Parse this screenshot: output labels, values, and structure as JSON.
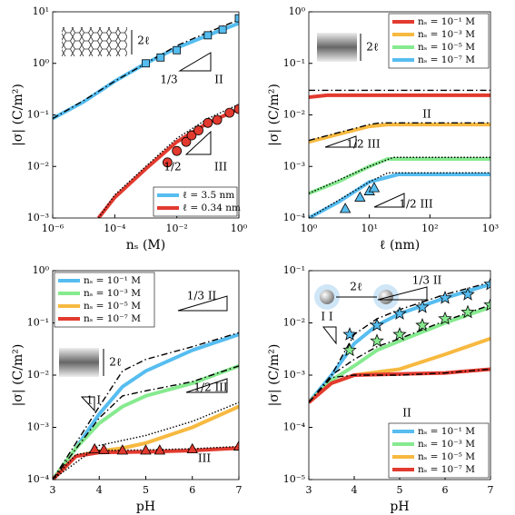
{
  "chart_data": [
    {
      "type": "line",
      "xlabel": "nₛ (M)",
      "ylabel": "|σ| (C/m²)",
      "xscale": "log",
      "yscale": "log",
      "xlim": [
        1e-06,
        1
      ],
      "ylim": [
        0.001,
        10
      ],
      "xticks": [
        {
          "value": 1e-06,
          "label": "10⁻⁶"
        },
        {
          "value": 0.0001,
          "label": "10⁻⁴"
        },
        {
          "value": 0.01,
          "label": "10⁻²"
        },
        {
          "value": 1,
          "label": "10⁰"
        }
      ],
      "yticks": [
        {
          "value": 0.001,
          "label": "10⁻³"
        },
        {
          "value": 0.01,
          "label": "10⁻²"
        },
        {
          "value": 0.1,
          "label": "10⁻¹"
        },
        {
          "value": 1,
          "label": "10⁰"
        },
        {
          "value": 10,
          "label": "10¹"
        }
      ],
      "legend": "lower right",
      "annotations": [
        "2ℓ",
        "1/3",
        "II",
        "1/2",
        "III"
      ],
      "series": [
        {
          "name": "ℓ = 3.5 nm",
          "color": "#56bdf0",
          "style": "solid",
          "x": [
            1e-06,
            1e-05,
            0.0001,
            0.001,
            0.01,
            0.1,
            1
          ],
          "values": [
            0.085,
            0.18,
            0.45,
            1.0,
            2.0,
            3.5,
            6
          ]
        },
        {
          "name": "ℓ = 0.34 nm",
          "color": "#e23a2f",
          "style": "solid",
          "x": [
            3e-05,
            0.0001,
            0.001,
            0.01,
            0.1,
            1
          ],
          "values": [
            0.001,
            0.0025,
            0.009,
            0.03,
            0.07,
            0.13
          ]
        },
        {
          "color": "#000000",
          "style": "dashdot",
          "x": [
            1e-06,
            1e-05,
            0.0001,
            0.001,
            0.01,
            0.1,
            1
          ],
          "values": [
            0.085,
            0.19,
            0.45,
            1.0,
            2.2,
            4.0,
            7
          ]
        },
        {
          "color": "#000000",
          "style": "dotted",
          "x": [
            3e-05,
            0.0001,
            0.001,
            0.01,
            0.1,
            1
          ],
          "values": [
            0.001,
            0.0028,
            0.01,
            0.035,
            0.085,
            0.16
          ]
        },
        {
          "color": "#56bdf0",
          "marker": "square",
          "x": [
            0.001,
            0.003,
            0.01,
            0.1,
            0.3,
            1
          ],
          "values": [
            1.0,
            1.3,
            1.8,
            3.5,
            4.5,
            7.5
          ]
        },
        {
          "color": "#e23a2f",
          "marker": "circle",
          "x": [
            0.005,
            0.01,
            0.02,
            0.03,
            0.05,
            0.1,
            0.2,
            0.5,
            1
          ],
          "values": [
            0.012,
            0.02,
            0.03,
            0.04,
            0.05,
            0.07,
            0.08,
            0.11,
            0.13
          ]
        }
      ]
    },
    {
      "type": "line",
      "xlabel": "ℓ (nm)",
      "ylabel": "|σ| (C/m²)",
      "xscale": "log",
      "yscale": "log",
      "xlim": [
        1,
        1000
      ],
      "ylim": [
        0.0001,
        1
      ],
      "xticks": [
        {
          "value": 1,
          "label": "10⁰"
        },
        {
          "value": 10,
          "label": "10¹"
        },
        {
          "value": 100,
          "label": "10²"
        },
        {
          "value": 1000,
          "label": "10³"
        }
      ],
      "yticks": [
        {
          "value": 0.0001,
          "label": "10⁻⁴"
        },
        {
          "value": 0.001,
          "label": "10⁻³"
        },
        {
          "value": 0.01,
          "label": "10⁻²"
        },
        {
          "value": 0.1,
          "label": "10⁻¹"
        },
        {
          "value": 1,
          "label": "10⁰"
        }
      ],
      "legend": "upper right",
      "annotations": [
        "2ℓ",
        "II",
        "1/2 III",
        "1/2 III"
      ],
      "series": [
        {
          "name": "nₛ = 10⁻¹ M",
          "color": "#e23a2f",
          "style": "solid",
          "x": [
            1,
            2,
            10,
            100,
            1000
          ],
          "values": [
            0.022,
            0.024,
            0.024,
            0.024,
            0.024
          ]
        },
        {
          "name": "nₛ = 10⁻³ M",
          "color": "#f7b940",
          "style": "solid",
          "x": [
            1,
            3,
            10,
            20,
            100,
            1000
          ],
          "values": [
            0.003,
            0.0042,
            0.006,
            0.0065,
            0.0065,
            0.0065
          ]
        },
        {
          "name": "nₛ = 10⁻⁵ M",
          "color": "#86ea8f",
          "style": "solid",
          "x": [
            1,
            3,
            10,
            20,
            100,
            1000
          ],
          "values": [
            0.0003,
            0.0005,
            0.001,
            0.0014,
            0.0014,
            0.0014
          ]
        },
        {
          "name": "nₛ = 10⁻⁷ M",
          "color": "#56bdf0",
          "style": "solid",
          "x": [
            1,
            3,
            10,
            30,
            100,
            1000
          ],
          "values": [
            0.0001,
            0.0002,
            0.0005,
            0.0007,
            0.0007,
            0.0007
          ]
        },
        {
          "color": "#000000",
          "style": "dashdot",
          "x": [
            1,
            2,
            1000
          ],
          "values": [
            0.03,
            0.03,
            0.03
          ]
        },
        {
          "color": "#000000",
          "style": "dashdot",
          "x": [
            1,
            10,
            15,
            1000
          ],
          "values": [
            0.0032,
            0.0065,
            0.007,
            0.007
          ]
        },
        {
          "color": "#000000",
          "style": "dotted",
          "x": [
            1,
            10,
            25,
            1000
          ],
          "values": [
            0.0003,
            0.001,
            0.0015,
            0.0015
          ]
        },
        {
          "color": "#000000",
          "style": "dotted",
          "x": [
            1,
            10,
            20,
            1000
          ],
          "values": [
            0.0001,
            0.0005,
            0.00075,
            0.00075
          ]
        },
        {
          "color": "#56bdf0",
          "marker": "triangle",
          "x": [
            4,
            7,
            10,
            12
          ],
          "values": [
            0.00015,
            0.00025,
            0.00033,
            0.00038
          ]
        }
      ]
    },
    {
      "type": "line",
      "xlabel": "pH",
      "ylabel": "|σ| (C/m²)",
      "xscale": "linear",
      "yscale": "log",
      "xlim": [
        3,
        7
      ],
      "ylim": [
        0.0001,
        1
      ],
      "xticks": [
        3,
        4,
        5,
        6,
        7
      ],
      "yticks": [
        {
          "value": 0.0001,
          "label": "10⁻⁴"
        },
        {
          "value": 0.001,
          "label": "10⁻³"
        },
        {
          "value": 0.01,
          "label": "10⁻²"
        },
        {
          "value": 0.1,
          "label": "10⁻¹"
        },
        {
          "value": 1,
          "label": "10⁰"
        }
      ],
      "legend": "upper left",
      "annotations": [
        "2ℓ",
        "1/3 II",
        "1/2 III",
        "1 I",
        "III"
      ],
      "series": [
        {
          "name": "nₛ = 10⁻¹ M",
          "color": "#56bdf0",
          "style": "solid",
          "x": [
            3,
            3.5,
            4,
            4.5,
            5,
            6,
            7
          ],
          "values": [
            0.0001,
            0.0004,
            0.0018,
            0.006,
            0.012,
            0.03,
            0.06
          ]
        },
        {
          "name": "nₛ = 10⁻³ M",
          "color": "#86ea8f",
          "style": "solid",
          "x": [
            3,
            3.5,
            4,
            4.5,
            5,
            6,
            7
          ],
          "values": [
            0.0001,
            0.0004,
            0.0012,
            0.0025,
            0.004,
            0.007,
            0.015
          ]
        },
        {
          "name": "nₛ = 10⁻⁵ M",
          "color": "#f7b940",
          "style": "solid",
          "x": [
            3,
            3.5,
            4,
            4.5,
            5,
            6,
            7
          ],
          "values": [
            0.0001,
            0.00028,
            0.00035,
            0.0004,
            0.0005,
            0.001,
            0.0025
          ]
        },
        {
          "name": "nₛ = 10⁻⁷ M",
          "color": "#e23a2f",
          "style": "solid",
          "x": [
            3,
            3.5,
            4,
            5,
            6,
            7
          ],
          "values": [
            0.0001,
            0.00028,
            0.00033,
            0.00034,
            0.00036,
            0.0004
          ]
        },
        {
          "color": "#000000",
          "style": "dashdot",
          "x": [
            3,
            4,
            4.5,
            5,
            6,
            7
          ],
          "values": [
            0.0001,
            0.0025,
            0.012,
            0.02,
            0.035,
            0.065
          ]
        },
        {
          "color": "#000000",
          "style": "dashdot",
          "x": [
            3,
            4,
            4.5,
            5,
            6,
            7
          ],
          "values": [
            0.0001,
            0.0015,
            0.004,
            0.005,
            0.0075,
            0.015
          ]
        },
        {
          "color": "#000000",
          "style": "dotted",
          "x": [
            3,
            4,
            5,
            6,
            7
          ],
          "values": [
            0.0001,
            0.00045,
            0.0007,
            0.0013,
            0.003
          ]
        },
        {
          "color": "#000000",
          "style": "dotted",
          "x": [
            3,
            3.5,
            4,
            5,
            6,
            7
          ],
          "values": [
            0.0001,
            0.0003,
            0.00036,
            0.00037,
            0.00039,
            0.00043
          ]
        },
        {
          "color": "#e23a2f",
          "marker": "triangle",
          "x": [
            3.9,
            4.1,
            4.5,
            5,
            5.3,
            6,
            7
          ],
          "values": [
            0.00038,
            0.00037,
            0.00036,
            0.00036,
            0.00036,
            0.00038,
            0.00043
          ]
        }
      ]
    },
    {
      "type": "line",
      "xlabel": "pH",
      "ylabel": "|σ| (C/m²)",
      "xscale": "linear",
      "yscale": "log",
      "xlim": [
        3,
        7
      ],
      "ylim": [
        1e-05,
        0.1
      ],
      "xticks": [
        3,
        4,
        5,
        6,
        7
      ],
      "yticks": [
        {
          "value": 1e-05,
          "label": "10⁻⁵"
        },
        {
          "value": 0.0001,
          "label": "10⁻⁴"
        },
        {
          "value": 0.001,
          "label": "10⁻³"
        },
        {
          "value": 0.01,
          "label": "10⁻²"
        },
        {
          "value": 0.1,
          "label": "10⁻¹"
        }
      ],
      "legend": "lower right",
      "annotations": [
        "2ℓ",
        "1/3 II",
        "I I",
        "II"
      ],
      "series": [
        {
          "name": "nₛ = 10⁻¹ M",
          "color": "#56bdf0",
          "style": "solid",
          "x": [
            3,
            3.5,
            4,
            4.5,
            5,
            6,
            7
          ],
          "values": [
            0.0003,
            0.001,
            0.004,
            0.009,
            0.015,
            0.03,
            0.055
          ]
        },
        {
          "name": "nₛ = 10⁻³ M",
          "color": "#86ea8f",
          "style": "solid",
          "x": [
            3,
            3.5,
            4,
            4.5,
            5,
            6,
            7
          ],
          "values": [
            0.0003,
            0.0008,
            0.0015,
            0.003,
            0.0045,
            0.01,
            0.02
          ]
        },
        {
          "name": "nₛ = 10⁻⁵ M",
          "color": "#f7b940",
          "style": "solid",
          "x": [
            3,
            3.5,
            4,
            5,
            6,
            7
          ],
          "values": [
            0.0003,
            0.0007,
            0.001,
            0.0013,
            0.0025,
            0.005
          ]
        },
        {
          "name": "nₛ = 10⁻⁷ M",
          "color": "#e23a2f",
          "style": "solid",
          "x": [
            3,
            3.5,
            4,
            5,
            6,
            7
          ],
          "values": [
            0.0003,
            0.0007,
            0.001,
            0.00105,
            0.0011,
            0.0013
          ]
        },
        {
          "color": "#000000",
          "style": "dashdot",
          "x": [
            3,
            3.5,
            4,
            4.5,
            5,
            6,
            7
          ],
          "values": [
            0.0003,
            0.001,
            0.006,
            0.012,
            0.018,
            0.035,
            0.06
          ]
        },
        {
          "color": "#000000",
          "style": "dashdot",
          "x": [
            3,
            3.5,
            4,
            4.5,
            5,
            6,
            7
          ],
          "values": [
            0.0003,
            0.001,
            0.002,
            0.0035,
            0.005,
            0.011,
            0.022
          ]
        },
        {
          "color": "#000000",
          "style": "dashdot",
          "x": [
            3,
            3.5,
            4,
            5,
            6,
            7
          ],
          "values": [
            0.0003,
            0.0009,
            0.001,
            0.001,
            0.0011,
            0.0013
          ]
        },
        {
          "color": "#56bdf0",
          "marker": "star",
          "x": [
            3.9,
            4.5,
            5,
            5.5,
            6,
            6.5,
            7
          ],
          "values": [
            0.006,
            0.009,
            0.015,
            0.02,
            0.03,
            0.035,
            0.055
          ]
        },
        {
          "color": "#86ea8f",
          "marker": "star",
          "x": [
            3.9,
            4.5,
            5,
            5.5,
            6,
            6.5,
            7
          ],
          "values": [
            0.003,
            0.0045,
            0.006,
            0.009,
            0.012,
            0.016,
            0.022
          ]
        }
      ]
    }
  ]
}
